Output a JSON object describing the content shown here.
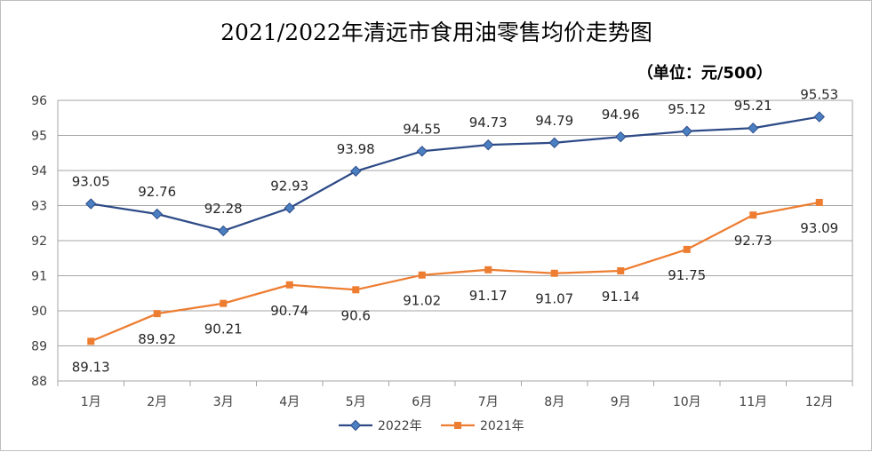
{
  "chart_data": {
    "type": "line",
    "title": "2021/2022年清远市食用油零售均价走势图",
    "unit_note": "（单位：元/500）",
    "categories": [
      "1月",
      "2月",
      "3月",
      "4月",
      "5月",
      "6月",
      "7月",
      "8月",
      "9月",
      "10月",
      "11月",
      "12月"
    ],
    "y_ticks": [
      "88",
      "89",
      "90",
      "91",
      "92",
      "93",
      "94",
      "95",
      "96"
    ],
    "ylim": [
      88,
      96
    ],
    "grid": "horizontal",
    "legend_position": "bottom",
    "series": [
      {
        "name": "2022年",
        "color": "#2e4b87",
        "marker": "diamond",
        "values": [
          93.05,
          92.76,
          92.28,
          92.93,
          93.98,
          94.55,
          94.73,
          94.79,
          94.96,
          95.12,
          95.21,
          95.53
        ],
        "labels": [
          "93.05",
          "92.76",
          "92.28",
          "92.93",
          "93.98",
          "94.55",
          "94.73",
          "94.79",
          "94.96",
          "95.12",
          "95.21",
          "95.53"
        ]
      },
      {
        "name": "2021年",
        "color": "#ed7d31",
        "marker": "square",
        "values": [
          89.13,
          89.92,
          90.21,
          90.74,
          90.6,
          91.02,
          91.17,
          91.07,
          91.14,
          91.75,
          92.73,
          93.09
        ],
        "labels": [
          "89.13",
          "89.92",
          "90.21",
          "90.74",
          "90.6",
          "91.02",
          "91.17",
          "91.07",
          "91.14",
          "91.75",
          "92.73",
          "93.09"
        ]
      }
    ]
  }
}
